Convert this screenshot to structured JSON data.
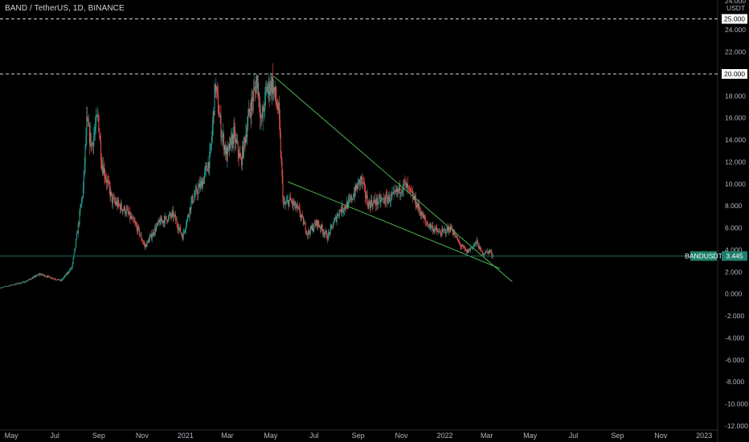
{
  "header": {
    "symbol_line": "BAND / TetherUS, 1D, BINANCE"
  },
  "colors": {
    "background": "#000000",
    "up": "#26a69a",
    "down": "#ef5350",
    "trendline": "#4caf50",
    "price_line": "#1e6b5e",
    "axis_text": "#b2b5be",
    "tag_bg": "#1e7f6b"
  },
  "chart_data": {
    "type": "candlestick",
    "title": "BAND / TetherUS, 1D, BINANCE",
    "currency_label": "USDT",
    "top_tick_partial": "24.000",
    "ylim": [
      -12,
      26.5
    ],
    "y_ticks": [
      "24.000",
      "22.000",
      "20.000",
      "18.000",
      "16.000",
      "14.000",
      "12.000",
      "10.000",
      "8.000",
      "6.000",
      "4.000",
      "2.000",
      "0.000",
      "-2.000",
      "-4.000",
      "-6.000",
      "-8.000",
      "-10.000",
      "-12.000"
    ],
    "x_ticks": [
      "May",
      "Jul",
      "Sep",
      "Nov",
      "2021",
      "Mar",
      "May",
      "Jul",
      "Sep",
      "Nov",
      "2022",
      "Mar",
      "May",
      "Jul",
      "Sep",
      "Nov",
      "2023"
    ],
    "x_start": "2020-04-15",
    "x_end": "2023-01-20",
    "price_path": [
      [
        "2020-04-15",
        0.55
      ],
      [
        "2020-05-20",
        1.1
      ],
      [
        "2020-06-10",
        1.8
      ],
      [
        "2020-07-10",
        1.2
      ],
      [
        "2020-07-25",
        2.4
      ],
      [
        "2020-07-30",
        4.3
      ],
      [
        "2020-08-10",
        9.5
      ],
      [
        "2020-08-15",
        15.5
      ],
      [
        "2020-08-22",
        13.5
      ],
      [
        "2020-08-31",
        16.2
      ],
      [
        "2020-09-05",
        12.0
      ],
      [
        "2020-09-20",
        8.5
      ],
      [
        "2020-10-10",
        7.5
      ],
      [
        "2020-10-25",
        6.0
      ],
      [
        "2020-11-05",
        4.3
      ],
      [
        "2020-11-25",
        6.5
      ],
      [
        "2020-12-15",
        7.2
      ],
      [
        "2020-12-28",
        5.2
      ],
      [
        "2021-01-10",
        8.5
      ],
      [
        "2021-01-25",
        10.2
      ],
      [
        "2021-02-05",
        12.5
      ],
      [
        "2021-02-12",
        19.0
      ],
      [
        "2021-02-20",
        15.0
      ],
      [
        "2021-02-28",
        12.5
      ],
      [
        "2021-03-10",
        14.5
      ],
      [
        "2021-03-20",
        12.0
      ],
      [
        "2021-04-01",
        16.5
      ],
      [
        "2021-04-12",
        19.5
      ],
      [
        "2021-04-18",
        15.5
      ],
      [
        "2021-04-25",
        18.5
      ],
      [
        "2021-05-03",
        19.2
      ],
      [
        "2021-05-12",
        16.5
      ],
      [
        "2021-05-19",
        8.0
      ],
      [
        "2021-05-28",
        8.5
      ],
      [
        "2021-06-10",
        7.5
      ],
      [
        "2021-06-22",
        5.5
      ],
      [
        "2021-07-05",
        6.5
      ],
      [
        "2021-07-20",
        5.2
      ],
      [
        "2021-08-05",
        7.5
      ],
      [
        "2021-08-20",
        8.3
      ],
      [
        "2021-09-05",
        10.5
      ],
      [
        "2021-09-15",
        8.2
      ],
      [
        "2021-10-05",
        8.5
      ],
      [
        "2021-10-20",
        8.8
      ],
      [
        "2021-11-05",
        10.0
      ],
      [
        "2021-11-20",
        8.5
      ],
      [
        "2021-12-05",
        6.5
      ],
      [
        "2021-12-25",
        5.5
      ],
      [
        "2022-01-10",
        6.0
      ],
      [
        "2022-01-22",
        4.5
      ],
      [
        "2022-02-01",
        3.8
      ],
      [
        "2022-02-15",
        4.7
      ],
      [
        "2022-02-22",
        3.7
      ],
      [
        "2022-03-05",
        3.9
      ],
      [
        "2022-03-10",
        3.445
      ]
    ],
    "last_price": 3.445,
    "last_price_label": "BANDUSDT",
    "last_price_value": "3.445",
    "horizontal_levels": [
      {
        "value": 25.0,
        "label": "25.000",
        "style": "dashed"
      },
      {
        "value": 20.0,
        "label": "20.000",
        "style": "dashed"
      }
    ],
    "trendlines": [
      {
        "from": [
          "2021-05-05",
          19.8
        ],
        "to": [
          "2022-04-06",
          1.1
        ]
      },
      {
        "from": [
          "2021-05-25",
          10.2
        ],
        "to": [
          "2022-03-20",
          2.3
        ]
      }
    ],
    "grid": false,
    "legend": "none"
  }
}
